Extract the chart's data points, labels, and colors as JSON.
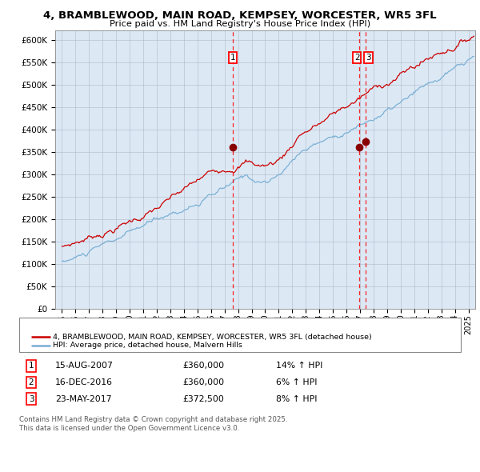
{
  "title_line1": "4, BRAMBLEWOOD, MAIN ROAD, KEMPSEY, WORCESTER, WR5 3FL",
  "title_line2": "Price paid vs. HM Land Registry's House Price Index (HPI)",
  "background_color": "#dce9f5",
  "plot_bg_color": "#dce9f5",
  "fig_bg_color": "#ffffff",
  "red_line_color": "#cc0000",
  "blue_line_color": "#7bafd4",
  "sale1_date_x": 2007.617,
  "sale1_price": 360000,
  "sale2_date_x": 2016.958,
  "sale2_price": 360000,
  "sale3_date_x": 2017.389,
  "sale3_price": 372500,
  "xmin": 1994.5,
  "xmax": 2025.5,
  "ymin": 0,
  "ymax": 620000,
  "yticks": [
    0,
    50000,
    100000,
    150000,
    200000,
    250000,
    300000,
    350000,
    400000,
    450000,
    500000,
    550000,
    600000
  ],
  "legend_label_red": "4, BRAMBLEWOOD, MAIN ROAD, KEMPSEY, WORCESTER, WR5 3FL (detached house)",
  "legend_label_blue": "HPI: Average price, detached house, Malvern Hills",
  "annotation1_label": "1",
  "annotation1_date": "15-AUG-2007",
  "annotation1_price": "£360,000",
  "annotation1_hpi": "14% ↑ HPI",
  "annotation2_label": "2",
  "annotation2_date": "16-DEC-2016",
  "annotation2_price": "£360,000",
  "annotation2_hpi": "6% ↑ HPI",
  "annotation3_label": "3",
  "annotation3_date": "23-MAY-2017",
  "annotation3_price": "£372,500",
  "annotation3_hpi": "8% ↑ HPI",
  "copyright_text": "Contains HM Land Registry data © Crown copyright and database right 2025.\nThis data is licensed under the Open Government Licence v3.0."
}
